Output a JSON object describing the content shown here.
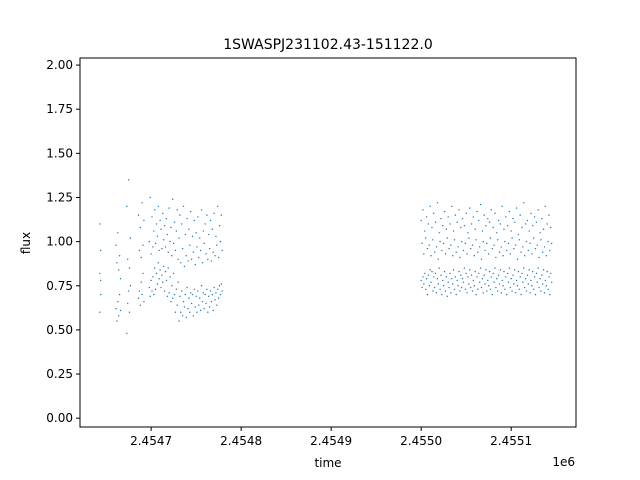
{
  "chart_data": {
    "type": "scatter",
    "title": "1SWASPJ231102.43-151122.0",
    "xlabel": "time",
    "ylabel": "flux",
    "x_offset_label": "1e6",
    "xlim": [
      2454621,
      2455172
    ],
    "ylim": [
      -0.05,
      2.04
    ],
    "x_ticks": [
      2454700,
      2454800,
      2454900,
      2455000,
      2455100
    ],
    "x_tick_labels": [
      "2.4547",
      "2.4548",
      "2.4549",
      "2.4550",
      "2.4551"
    ],
    "y_ticks": [
      0.0,
      0.25,
      0.5,
      0.75,
      1.0,
      1.25,
      1.5,
      1.75,
      2.0
    ],
    "y_tick_labels": [
      "0.00",
      "0.25",
      "0.50",
      "0.75",
      "1.00",
      "1.25",
      "1.50",
      "1.75",
      "2.00"
    ],
    "grid": false,
    "marker_color": "#1f77b4",
    "series": [
      {
        "x": [
          2454643,
          2454643,
          2454643,
          2454644,
          2454644,
          2454644,
          2454661,
          2454661,
          2454662,
          2454662,
          2454663,
          2454663,
          2454664,
          2454664,
          2454665,
          2454665,
          2454666,
          2454666,
          2454673,
          2454673,
          2454674,
          2454674,
          2454675,
          2454675,
          2454676,
          2454676,
          2454677,
          2454677,
          2454686,
          2454686,
          2454687,
          2454687,
          2454688,
          2454688,
          2454689,
          2454689,
          2454690,
          2454690,
          2454691,
          2454691,
          2454692,
          2454692,
          2454698,
          2454698,
          2454699,
          2454699,
          2454700,
          2454700,
          2454701,
          2454701,
          2454702,
          2454702,
          2454703,
          2454703,
          2454704,
          2454704,
          2454705,
          2454705,
          2454706,
          2454706,
          2454707,
          2454707,
          2454708,
          2454708,
          2454709,
          2454709,
          2454710,
          2454710,
          2454711,
          2454711,
          2454712,
          2454712,
          2454713,
          2454713,
          2454714,
          2454714,
          2454715,
          2454715,
          2454716,
          2454716,
          2454717,
          2454717,
          2454718,
          2454718,
          2454719,
          2454719,
          2454720,
          2454720,
          2454721,
          2454721,
          2454722,
          2454722,
          2454723,
          2454723,
          2454724,
          2454724,
          2454725,
          2454725,
          2454726,
          2454726,
          2454727,
          2454727,
          2454728,
          2454728,
          2454729,
          2454729,
          2454730,
          2454730,
          2454731,
          2454731,
          2454732,
          2454732,
          2454733,
          2454733,
          2454734,
          2454734,
          2454735,
          2454735,
          2454736,
          2454736,
          2454737,
          2454737,
          2454738,
          2454738,
          2454739,
          2454739,
          2454740,
          2454740,
          2454741,
          2454741,
          2454742,
          2454742,
          2454743,
          2454743,
          2454744,
          2454744,
          2454745,
          2454745,
          2454746,
          2454746,
          2454747,
          2454747,
          2454748,
          2454748,
          2454749,
          2454749,
          2454750,
          2454750,
          2454751,
          2454751,
          2454752,
          2454752,
          2454753,
          2454753,
          2454754,
          2454754,
          2454755,
          2454755,
          2454756,
          2454756,
          2454757,
          2454757,
          2454758,
          2454758,
          2454759,
          2454759,
          2454760,
          2454760,
          2454761,
          2454761,
          2454762,
          2454762,
          2454763,
          2454763,
          2454764,
          2454764,
          2454765,
          2454765,
          2454766,
          2454766,
          2454767,
          2454767,
          2454768,
          2454768,
          2454769,
          2454769,
          2454770,
          2454770,
          2454771,
          2454771,
          2454772,
          2454772,
          2454773,
          2454773,
          2454774,
          2454774,
          2454775,
          2454775,
          2454776,
          2454776,
          2454777,
          2454777,
          2454778,
          2454778,
          2454779,
          2454779,
          2455000,
          2455000,
          2455001,
          2455001,
          2455002,
          2455002,
          2455003,
          2455003,
          2455004,
          2455004,
          2455005,
          2455005,
          2455006,
          2455006,
          2455007,
          2455007,
          2455008,
          2455008,
          2455009,
          2455009,
          2455010,
          2455010,
          2455011,
          2455011,
          2455012,
          2455012,
          2455013,
          2455013,
          2455014,
          2455014,
          2455015,
          2455015,
          2455016,
          2455016,
          2455017,
          2455017,
          2455018,
          2455018,
          2455019,
          2455019,
          2455020,
          2455020,
          2455021,
          2455021,
          2455022,
          2455022,
          2455023,
          2455023,
          2455024,
          2455024,
          2455025,
          2455025,
          2455026,
          2455026,
          2455027,
          2455027,
          2455028,
          2455028,
          2455029,
          2455029,
          2455030,
          2455030,
          2455031,
          2455031,
          2455032,
          2455032,
          2455033,
          2455033,
          2455034,
          2455034,
          2455035,
          2455035,
          2455036,
          2455036,
          2455037,
          2455037,
          2455038,
          2455038,
          2455039,
          2455039,
          2455040,
          2455040,
          2455041,
          2455041,
          2455042,
          2455042,
          2455043,
          2455043,
          2455044,
          2455044,
          2455045,
          2455045,
          2455046,
          2455046,
          2455047,
          2455047,
          2455048,
          2455048,
          2455049,
          2455049,
          2455050,
          2455050,
          2455051,
          2455051,
          2455052,
          2455052,
          2455053,
          2455053,
          2455054,
          2455054,
          2455055,
          2455055,
          2455056,
          2455056,
          2455057,
          2455057,
          2455058,
          2455058,
          2455059,
          2455059,
          2455060,
          2455060,
          2455061,
          2455061,
          2455062,
          2455062,
          2455063,
          2455063,
          2455064,
          2455064,
          2455065,
          2455065,
          2455066,
          2455066,
          2455067,
          2455067,
          2455068,
          2455068,
          2455069,
          2455069,
          2455070,
          2455070,
          2455071,
          2455071,
          2455072,
          2455072,
          2455073,
          2455073,
          2455074,
          2455074,
          2455075,
          2455075,
          2455076,
          2455076,
          2455077,
          2455077,
          2455078,
          2455078,
          2455079,
          2455079,
          2455080,
          2455080,
          2455081,
          2455081,
          2455082,
          2455082,
          2455083,
          2455083,
          2455084,
          2455084,
          2455085,
          2455085,
          2455086,
          2455086,
          2455087,
          2455087,
          2455088,
          2455088,
          2455089,
          2455089,
          2455090,
          2455090,
          2455091,
          2455091,
          2455092,
          2455092,
          2455093,
          2455093,
          2455094,
          2455094,
          2455095,
          2455095,
          2455096,
          2455096,
          2455097,
          2455097,
          2455098,
          2455098,
          2455099,
          2455099,
          2455100,
          2455100,
          2455101,
          2455101,
          2455102,
          2455102,
          2455103,
          2455103,
          2455104,
          2455104,
          2455105,
          2455105,
          2455106,
          2455106,
          2455107,
          2455107,
          2455108,
          2455108,
          2455109,
          2455109,
          2455110,
          2455110,
          2455111,
          2455111,
          2455112,
          2455112,
          2455113,
          2455113,
          2455114,
          2455114,
          2455115,
          2455115,
          2455116,
          2455116,
          2455117,
          2455117,
          2455118,
          2455118,
          2455119,
          2455119,
          2455120,
          2455120,
          2455121,
          2455121,
          2455122,
          2455122,
          2455123,
          2455123,
          2455124,
          2455124,
          2455125,
          2455125,
          2455126,
          2455126,
          2455127,
          2455127,
          2455128,
          2455128,
          2455129,
          2455129,
          2455130,
          2455130,
          2455131,
          2455131,
          2455132,
          2455132,
          2455133,
          2455133,
          2455134,
          2455134,
          2455135,
          2455135,
          2455136,
          2455136,
          2455137,
          2455137,
          2455138,
          2455138,
          2455139,
          2455139,
          2455140,
          2455140,
          2455141,
          2455141,
          2455142,
          2455142,
          2455143,
          2455143,
          2455144,
          2455144,
          2455145,
          2455145
        ],
        "y": [
          0.6,
          1.1,
          0.82,
          0.7,
          0.95,
          0.78,
          0.62,
          0.98,
          0.55,
          0.88,
          0.66,
          1.05,
          0.58,
          0.84,
          0.7,
          0.92,
          0.61,
          0.79,
          0.48,
          1.2,
          0.65,
          0.9,
          0.72,
          1.35,
          0.6,
          0.85,
          0.75,
          1.02,
          0.68,
          1.15,
          0.72,
          0.95,
          0.64,
          1.08,
          0.77,
          0.91,
          0.7,
          1.22,
          0.82,
          0.98,
          0.66,
          1.12,
          0.74,
          1.0,
          0.69,
          1.25,
          0.78,
          0.93,
          0.72,
          1.14,
          0.8,
          0.97,
          0.7,
          1.06,
          0.85,
          1.18,
          0.73,
          0.99,
          0.82,
          1.1,
          0.76,
          1.03,
          0.88,
          1.2,
          0.79,
          0.95,
          0.84,
          1.12,
          0.74,
          1.07,
          0.81,
          0.96,
          0.77,
          1.16,
          0.86,
          1.01,
          0.72,
          1.09,
          0.83,
          0.97,
          0.78,
          1.13,
          0.69,
          1.04,
          0.85,
          0.94,
          0.71,
          1.19,
          0.8,
          1.0,
          0.66,
          1.08,
          0.75,
          0.92,
          0.68,
          1.24,
          0.82,
          0.99,
          0.7,
          1.11,
          0.6,
          0.95,
          0.73,
          1.06,
          0.64,
          1.18,
          0.77,
          0.9,
          0.55,
          1.02,
          0.69,
          1.15,
          0.6,
          0.88,
          0.72,
          1.1,
          0.58,
          0.96,
          0.66,
          1.2,
          0.63,
          0.86,
          0.7,
          1.04,
          0.57,
          0.92,
          0.74,
          1.13,
          0.62,
          0.89,
          0.68,
          1.07,
          0.6,
          0.98,
          0.71,
          1.17,
          0.65,
          0.9,
          0.7,
          1.03,
          0.58,
          0.94,
          0.73,
          1.12,
          0.63,
          0.87,
          0.69,
          1.05,
          0.6,
          0.97,
          0.72,
          1.14,
          0.64,
          0.91,
          0.68,
          1.02,
          0.61,
          0.95,
          0.75,
          1.18,
          0.66,
          0.88,
          0.71,
          1.06,
          0.62,
          0.99,
          0.7,
          1.1,
          0.65,
          0.93,
          0.73,
          1.15,
          0.6,
          0.9,
          0.69,
          1.04,
          0.63,
          0.96,
          0.72,
          1.12,
          0.66,
          0.89,
          0.7,
          1.07,
          0.61,
          0.94,
          0.74,
          1.16,
          0.67,
          0.92,
          0.71,
          1.03,
          0.64,
          0.98,
          0.73,
          1.2,
          0.68,
          0.91,
          0.75,
          1.09,
          0.7,
          1.0,
          0.76,
          1.15,
          0.72,
          0.95,
          0.78,
          1.12,
          0.74,
          0.99,
          0.8,
          1.18,
          0.76,
          0.93,
          0.82,
          1.06,
          0.73,
          1.02,
          0.79,
          1.14,
          0.7,
          0.96,
          0.81,
          1.1,
          0.75,
          0.98,
          0.84,
          1.2,
          0.77,
          0.92,
          0.83,
          1.08,
          0.72,
          1.01,
          0.8,
          1.16,
          0.74,
          0.94,
          0.82,
          1.11,
          0.71,
          0.97,
          0.79,
          1.22,
          0.76,
          0.9,
          0.85,
          1.05,
          0.73,
          1.0,
          0.81,
          1.13,
          0.7,
          0.95,
          0.78,
          1.09,
          0.75,
          0.99,
          0.83,
          1.17,
          0.72,
          0.93,
          0.8,
          1.07,
          0.69,
          1.02,
          0.77,
          1.14,
          0.74,
          0.96,
          0.82,
          1.1,
          0.71,
          0.98,
          0.79,
          1.2,
          0.76,
          0.92,
          0.84,
          1.06,
          0.73,
          1.01,
          0.8,
          1.15,
          0.7,
          0.94,
          0.78,
          1.11,
          0.75,
          0.97,
          0.83,
          1.18,
          0.72,
          0.91,
          0.81,
          1.08,
          0.74,
          1.0,
          0.79,
          1.13,
          0.77,
          0.95,
          0.85,
          1.09,
          0.73,
          0.99,
          0.82,
          1.16,
          0.71,
          0.93,
          0.8,
          1.05,
          0.76,
          1.02,
          0.84,
          1.19,
          0.74,
          0.96,
          0.81,
          1.1,
          0.72,
          0.98,
          0.78,
          1.14,
          0.75,
          0.92,
          0.83,
          1.07,
          0.7,
          1.01,
          0.8,
          1.17,
          0.73,
          0.94,
          0.82,
          1.12,
          0.77,
          0.97,
          0.85,
          1.21,
          0.74,
          0.9,
          0.79,
          1.06,
          0.71,
          1.0,
          0.81,
          1.15,
          0.76,
          0.95,
          0.84,
          1.09,
          0.72,
          0.99,
          0.78,
          1.13,
          0.75,
          0.93,
          0.83,
          1.11,
          0.73,
          1.02,
          0.8,
          1.18,
          0.7,
          0.96,
          0.82,
          1.08,
          0.77,
          0.98,
          0.85,
          1.16,
          0.74,
          0.91,
          0.79,
          1.05,
          0.72,
          1.01,
          0.81,
          1.12,
          0.76,
          0.94,
          0.84,
          1.1,
          0.71,
          0.97,
          0.78,
          1.2,
          0.75,
          0.92,
          0.83,
          1.07,
          0.73,
          1.0,
          0.8,
          1.14,
          0.7,
          0.95,
          0.82,
          1.09,
          0.77,
          0.99,
          0.85,
          1.17,
          0.74,
          0.93,
          0.79,
          1.06,
          0.72,
          1.02,
          0.81,
          1.13,
          0.76,
          0.96,
          0.84,
          1.11,
          0.71,
          0.98,
          0.78,
          1.19,
          0.75,
          0.9,
          0.83,
          1.04,
          0.73,
          1.01,
          0.8,
          1.15,
          0.7,
          0.94,
          0.82,
          1.08,
          0.77,
          0.97,
          0.85,
          1.22,
          0.74,
          0.92,
          0.79,
          1.1,
          0.72,
          1.0,
          0.81,
          1.12,
          0.76,
          0.95,
          0.84,
          1.06,
          0.71,
          0.99,
          0.78,
          1.16,
          0.75,
          0.93,
          0.83,
          1.09,
          0.73,
          1.02,
          0.8,
          1.14,
          0.7,
          0.96,
          0.82,
          1.11,
          0.77,
          0.98,
          0.85,
          1.18,
          0.74,
          0.91,
          0.79,
          1.05,
          0.72,
          1.01,
          0.81,
          1.13,
          0.76,
          0.94,
          0.84,
          1.07,
          0.71,
          0.97,
          0.78,
          1.2,
          0.75,
          0.92,
          0.83,
          1.1,
          0.73,
          1.0,
          0.8,
          1.15,
          0.7,
          0.95,
          0.82,
          1.08,
          0.77,
          0.99
        ]
      }
    ]
  }
}
